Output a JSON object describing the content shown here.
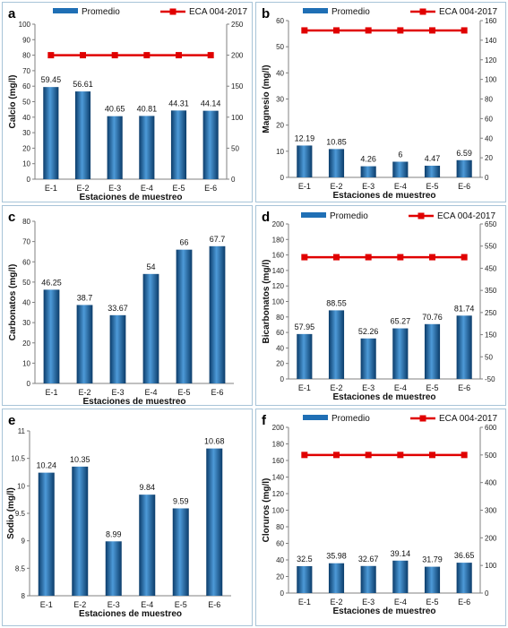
{
  "colors": {
    "bar": "#1f6fb5",
    "bar_dark": "#0b3c6a",
    "bar_light": "#4d9ad8",
    "eca_line": "#e00000",
    "grid": "#c0c0c0",
    "border": "#a8c4d8"
  },
  "chart_data": [
    {
      "panel": "a",
      "type": "bar",
      "categories": [
        "E-1",
        "E-2",
        "E-3",
        "E-4",
        "E-5",
        "E-6"
      ],
      "series": [
        {
          "name": "Promedio",
          "values": [
            59.45,
            56.61,
            40.65,
            40.81,
            44.31,
            44.14
          ],
          "axis": "left"
        },
        {
          "name": "ECA 004-2017",
          "type": "line",
          "values": [
            200,
            200,
            200,
            200,
            200,
            200
          ],
          "axis": "right"
        }
      ],
      "legend": {
        "promedio": "Promedio",
        "eca": "ECA 004-2017"
      },
      "xlabel": "Estaciones de muestreo",
      "ylabel": "Calcio  (mg/l)",
      "ylim": [
        0,
        100
      ],
      "yticks": [
        0,
        10,
        20,
        30,
        40,
        50,
        60,
        70,
        80,
        90,
        100
      ],
      "y2lim": [
        0,
        250
      ],
      "y2ticks": [
        0,
        50,
        100,
        150,
        200,
        250
      ],
      "value_labels": [
        "59.45",
        "56.61",
        "40.65",
        "40.81",
        "44.31",
        "44.14"
      ],
      "grid": false,
      "legend_placement": "top"
    },
    {
      "panel": "b",
      "type": "bar",
      "categories": [
        "E-1",
        "E-2",
        "E-3",
        "E-4",
        "E-5",
        "E-6"
      ],
      "series": [
        {
          "name": "Promedio",
          "values": [
            12.19,
            10.85,
            4.26,
            6,
            4.47,
            6.59
          ],
          "axis": "left"
        },
        {
          "name": "ECA 004-2017",
          "type": "line",
          "values": [
            150,
            150,
            150,
            150,
            150,
            150
          ],
          "axis": "right"
        }
      ],
      "legend": {
        "promedio": "Promedio",
        "eca": "ECA 004-2017"
      },
      "xlabel": "Estaciones de muestreo",
      "ylabel": "Magnesio  (mg/l)",
      "ylim": [
        0,
        60
      ],
      "yticks": [
        0,
        10,
        20,
        30,
        40,
        50,
        60
      ],
      "y2lim": [
        0,
        160
      ],
      "y2ticks": [
        0,
        20,
        40,
        60,
        80,
        100,
        120,
        140,
        160
      ],
      "value_labels": [
        "12.19",
        "10.85",
        "4.26",
        "6",
        "4.47",
        "6.59"
      ],
      "grid": false,
      "legend_placement": "top"
    },
    {
      "panel": "c",
      "type": "bar",
      "categories": [
        "E-1",
        "E-2",
        "E-3",
        "E-4",
        "E-5",
        "E-6"
      ],
      "series": [
        {
          "name": "Promedio",
          "values": [
            46.25,
            38.7,
            33.67,
            54,
            66,
            67.7
          ],
          "axis": "left"
        }
      ],
      "legend": {},
      "xlabel": "Estaciones de muestreo",
      "ylabel": "Carbonatos  (mg/l)",
      "ylim": [
        0,
        80
      ],
      "yticks": [
        0,
        10,
        20,
        30,
        40,
        50,
        60,
        70,
        80
      ],
      "value_labels": [
        "46.25",
        "38.7",
        "33.67",
        "54",
        "66",
        "67.7"
      ],
      "grid": false
    },
    {
      "panel": "d",
      "type": "bar",
      "categories": [
        "E-1",
        "E-2",
        "E-3",
        "E-4",
        "E-5",
        "E-6"
      ],
      "series": [
        {
          "name": "Promedio",
          "values": [
            57.95,
            88.55,
            52.26,
            65.27,
            70.76,
            81.74
          ],
          "axis": "left"
        },
        {
          "name": "ECA 004-2017",
          "type": "line",
          "values": [
            500,
            500,
            500,
            500,
            500,
            500
          ],
          "axis": "right"
        }
      ],
      "legend": {
        "promedio": "Promedio",
        "eca": "ECA 004-2017"
      },
      "xlabel": "Estaciones de muestreo",
      "ylabel": "Bicarbonatos  (mg/l)",
      "ylim": [
        0,
        200
      ],
      "yticks": [
        0,
        20,
        40,
        60,
        80,
        100,
        120,
        140,
        160,
        180,
        200
      ],
      "y2lim": [
        -50,
        650
      ],
      "y2ticks": [
        -50,
        50,
        150,
        250,
        350,
        450,
        550,
        650
      ],
      "value_labels": [
        "57.95",
        "88.55",
        "52.26",
        "65.27",
        "70.76",
        "81.74"
      ],
      "grid": false,
      "legend_placement": "top"
    },
    {
      "panel": "e",
      "type": "bar",
      "categories": [
        "E-1",
        "E-2",
        "E-3",
        "E-4",
        "E-5",
        "E-6"
      ],
      "series": [
        {
          "name": "Promedio",
          "values": [
            10.24,
            10.35,
            8.99,
            9.84,
            9.59,
            10.68
          ],
          "axis": "left"
        }
      ],
      "legend": {},
      "xlabel": "Estaciones de muestreo",
      "ylabel": "Sodio  (mg/l)",
      "ylim": [
        8,
        11
      ],
      "yticks": [
        8,
        8.5,
        9,
        9.5,
        10,
        10.5,
        11
      ],
      "value_labels": [
        "10.24",
        "10.35",
        "8.99",
        "9.84",
        "9.59",
        "10.68"
      ],
      "grid": false
    },
    {
      "panel": "f",
      "type": "bar",
      "categories": [
        "E-1",
        "E-2",
        "E-3",
        "E-4",
        "E-5",
        "E-6"
      ],
      "series": [
        {
          "name": "Promedio",
          "values": [
            32.5,
            35.98,
            32.67,
            39.14,
            31.79,
            36.65
          ],
          "axis": "left"
        },
        {
          "name": "ECA 004-2017",
          "type": "line",
          "values": [
            500,
            500,
            500,
            500,
            500,
            500
          ],
          "axis": "right"
        }
      ],
      "legend": {
        "promedio": "Promedio",
        "eca": "ECA 004-2017"
      },
      "xlabel": "Estaciones de muestreo",
      "ylabel": "Cloruros  (mg/l)",
      "ylim": [
        0,
        200
      ],
      "yticks": [
        0,
        20,
        40,
        60,
        80,
        100,
        120,
        140,
        160,
        180,
        200
      ],
      "y2lim": [
        0,
        600
      ],
      "y2ticks": [
        0,
        100,
        200,
        300,
        400,
        500,
        600
      ],
      "value_labels": [
        "32.5",
        "35.98",
        "32.67",
        "39.14",
        "31.79",
        "36.65"
      ],
      "grid": false,
      "legend_placement": "top"
    }
  ]
}
